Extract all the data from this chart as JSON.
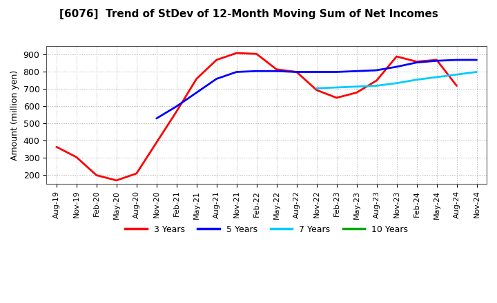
{
  "title": "[6076]  Trend of StDev of 12-Month Moving Sum of Net Incomes",
  "ylabel": "Amount (million yen)",
  "background_color": "#ffffff",
  "grid_color": "#aaaaaa",
  "x_labels": [
    "Aug-19",
    "Nov-19",
    "Feb-20",
    "May-20",
    "Aug-20",
    "Nov-20",
    "Feb-21",
    "May-21",
    "Aug-21",
    "Nov-21",
    "Feb-22",
    "May-22",
    "Aug-22",
    "Nov-22",
    "Feb-23",
    "May-23",
    "Aug-23",
    "Nov-23",
    "Feb-24",
    "May-24",
    "Aug-24",
    "Nov-24"
  ],
  "series": {
    "3 Years": {
      "color": "#ff0000",
      "data_indices": [
        0,
        1,
        2,
        3,
        4,
        5,
        6,
        7,
        8,
        9,
        10,
        11,
        12,
        13,
        14,
        15,
        16,
        17,
        18,
        19,
        20,
        21
      ],
      "values": [
        365,
        305,
        200,
        170,
        210,
        390,
        570,
        760,
        870,
        910,
        905,
        815,
        800,
        695,
        650,
        680,
        750,
        890,
        860,
        870,
        720,
        null
      ]
    },
    "5 Years": {
      "color": "#0000ff",
      "data_indices": [
        5,
        6,
        7,
        8,
        9,
        10,
        11,
        12,
        13,
        14,
        15,
        16,
        17,
        18,
        19,
        20,
        21
      ],
      "values": [
        530,
        600,
        680,
        760,
        800,
        805,
        805,
        800,
        800,
        800,
        805,
        810,
        830,
        855,
        865,
        870,
        870
      ]
    },
    "7 Years": {
      "color": "#00ccff",
      "data_indices": [
        13,
        14,
        15,
        16,
        17,
        18,
        19,
        20,
        21
      ],
      "values": [
        705,
        710,
        715,
        720,
        735,
        755,
        770,
        785,
        800
      ]
    },
    "10 Years": {
      "color": "#00aa00",
      "data_indices": [],
      "values": []
    }
  },
  "ylim": [
    150,
    950
  ],
  "yticks": [
    200,
    300,
    400,
    500,
    600,
    700,
    800,
    900
  ],
  "legend_items": [
    "3 Years",
    "5 Years",
    "7 Years",
    "10 Years"
  ],
  "legend_colors": [
    "#ff0000",
    "#0000ff",
    "#00ccff",
    "#00aa00"
  ]
}
